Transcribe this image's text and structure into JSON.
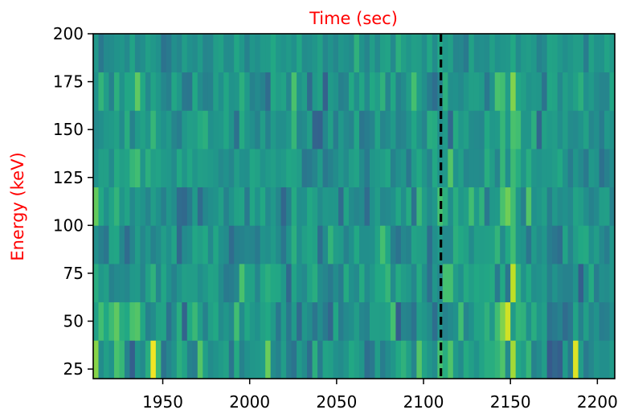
{
  "chart_data": {
    "type": "heatmap",
    "title": "Time (sec)",
    "xlabel": "",
    "ylabel": "Energy (keV)",
    "label_color": "#ff0000",
    "colormap": "viridis",
    "xlim": [
      1910,
      2210
    ],
    "ylim": [
      20,
      200
    ],
    "x_ticks": [
      1950,
      2000,
      2050,
      2100,
      2150,
      2200
    ],
    "y_ticks": [
      25,
      50,
      75,
      100,
      125,
      150,
      175,
      200
    ],
    "x_bin_width": 3,
    "y_bins": [
      20,
      40,
      60,
      80,
      100,
      120,
      140,
      160,
      180,
      200
    ],
    "marker_line": {
      "x": 2110,
      "style": "dashed",
      "color": "#000000"
    },
    "grid": false,
    "legend": "none",
    "intensity_rows": [
      [
        0.82,
        0.48,
        0.56,
        0.51,
        0.71,
        0.66,
        0.44,
        0.3,
        0.52,
        0.47,
        0.62,
        0.98,
        0.67,
        0.38,
        0.45,
        0.51,
        0.63,
        0.58,
        0.44,
        0.42,
        0.73,
        0.56,
        0.48,
        0.51,
        0.54,
        0.57,
        0.39,
        0.61,
        0.44,
        0.5,
        0.52,
        0.53,
        0.55,
        0.77,
        0.48,
        0.44,
        0.55,
        0.42,
        0.38,
        0.54,
        0.48,
        0.36,
        0.63,
        0.42,
        0.58,
        0.56,
        0.5,
        0.48,
        0.52,
        0.6,
        0.56,
        0.52,
        0.36,
        0.4,
        0.55,
        0.42,
        0.48,
        0.52,
        0.6,
        0.64,
        0.56,
        0.45,
        0.73,
        0.58,
        0.52,
        0.48,
        0.7,
        0.62,
        0.72,
        0.54,
        0.48,
        0.61,
        0.56,
        0.51,
        0.58,
        0.62,
        0.62,
        0.65,
        0.72,
        0.47,
        0.86,
        0.6,
        0.55,
        0.66,
        0.44,
        0.48,
        0.55,
        0.28,
        0.33,
        0.3,
        0.54,
        0.41,
        0.95,
        0.55,
        0.41,
        0.46,
        0.52,
        0.49,
        0.49,
        0.54
      ],
      [
        0.56,
        0.69,
        0.6,
        0.68,
        0.75,
        0.62,
        0.6,
        0.71,
        0.73,
        0.59,
        0.44,
        0.48,
        0.57,
        0.58,
        0.38,
        0.48,
        0.62,
        0.32,
        0.6,
        0.67,
        0.55,
        0.44,
        0.56,
        0.6,
        0.48,
        0.52,
        0.47,
        0.69,
        0.48,
        0.59,
        0.53,
        0.5,
        0.57,
        0.6,
        0.54,
        0.4,
        0.54,
        0.4,
        0.54,
        0.35,
        0.52,
        0.48,
        0.39,
        0.48,
        0.41,
        0.33,
        0.59,
        0.42,
        0.47,
        0.49,
        0.55,
        0.46,
        0.44,
        0.56,
        0.56,
        0.55,
        0.58,
        0.7,
        0.29,
        0.45,
        0.44,
        0.38,
        0.55,
        0.52,
        0.48,
        0.36,
        0.51,
        0.44,
        0.47,
        0.5,
        0.69,
        0.45,
        0.5,
        0.58,
        0.58,
        0.64,
        0.53,
        0.69,
        0.81,
        0.93,
        0.54,
        0.65,
        0.64,
        0.5,
        0.62,
        0.52,
        0.56,
        0.38,
        0.41,
        0.44,
        0.35,
        0.4,
        0.58,
        0.44,
        0.56,
        0.46,
        0.51,
        0.42,
        0.43,
        0.49
      ],
      [
        0.62,
        0.53,
        0.56,
        0.44,
        0.47,
        0.48,
        0.46,
        0.53,
        0.54,
        0.45,
        0.57,
        0.64,
        0.46,
        0.59,
        0.5,
        0.44,
        0.51,
        0.56,
        0.55,
        0.55,
        0.49,
        0.53,
        0.58,
        0.57,
        0.48,
        0.41,
        0.42,
        0.46,
        0.71,
        0.57,
        0.57,
        0.46,
        0.59,
        0.63,
        0.6,
        0.59,
        0.53,
        0.34,
        0.58,
        0.5,
        0.47,
        0.58,
        0.62,
        0.48,
        0.45,
        0.41,
        0.48,
        0.42,
        0.61,
        0.5,
        0.47,
        0.61,
        0.48,
        0.53,
        0.6,
        0.6,
        0.66,
        0.48,
        0.61,
        0.55,
        0.53,
        0.46,
        0.61,
        0.49,
        0.37,
        0.52,
        0.46,
        0.7,
        0.7,
        0.55,
        0.5,
        0.61,
        0.56,
        0.6,
        0.58,
        0.59,
        0.61,
        0.41,
        0.6,
        0.39,
        0.9,
        0.64,
        0.51,
        0.6,
        0.49,
        0.51,
        0.54,
        0.44,
        0.51,
        0.46,
        0.44,
        0.44,
        0.51,
        0.3,
        0.49,
        0.61,
        0.42,
        0.49,
        0.48,
        0.52
      ],
      [
        0.49,
        0.43,
        0.39,
        0.58,
        0.59,
        0.46,
        0.35,
        0.45,
        0.55,
        0.46,
        0.52,
        0.44,
        0.48,
        0.55,
        0.5,
        0.58,
        0.34,
        0.47,
        0.49,
        0.59,
        0.56,
        0.6,
        0.47,
        0.59,
        0.5,
        0.48,
        0.35,
        0.43,
        0.44,
        0.46,
        0.45,
        0.41,
        0.51,
        0.49,
        0.54,
        0.48,
        0.39,
        0.51,
        0.63,
        0.49,
        0.56,
        0.59,
        0.57,
        0.36,
        0.48,
        0.65,
        0.55,
        0.54,
        0.44,
        0.5,
        0.6,
        0.49,
        0.49,
        0.5,
        0.58,
        0.7,
        0.59,
        0.43,
        0.38,
        0.46,
        0.44,
        0.58,
        0.56,
        0.55,
        0.36,
        0.49,
        0.53,
        0.47,
        0.47,
        0.63,
        0.6,
        0.57,
        0.48,
        0.56,
        0.55,
        0.56,
        0.57,
        0.65,
        0.48,
        0.6,
        0.69,
        0.52,
        0.51,
        0.39,
        0.54,
        0.48,
        0.52,
        0.42,
        0.39,
        0.36,
        0.58,
        0.45,
        0.55,
        0.6,
        0.61,
        0.5,
        0.55,
        0.47,
        0.42,
        0.52
      ],
      [
        0.76,
        0.6,
        0.5,
        0.58,
        0.65,
        0.52,
        0.58,
        0.47,
        0.54,
        0.51,
        0.45,
        0.55,
        0.5,
        0.43,
        0.52,
        0.48,
        0.35,
        0.34,
        0.41,
        0.54,
        0.35,
        0.46,
        0.49,
        0.51,
        0.56,
        0.44,
        0.51,
        0.57,
        0.58,
        0.41,
        0.59,
        0.51,
        0.6,
        0.47,
        0.53,
        0.46,
        0.33,
        0.44,
        0.61,
        0.49,
        0.5,
        0.6,
        0.56,
        0.48,
        0.53,
        0.52,
        0.52,
        0.35,
        0.58,
        0.48,
        0.45,
        0.47,
        0.35,
        0.5,
        0.55,
        0.46,
        0.47,
        0.5,
        0.59,
        0.49,
        0.61,
        0.38,
        0.67,
        0.55,
        0.48,
        0.53,
        0.7,
        0.63,
        0.49,
        0.62,
        0.53,
        0.56,
        0.69,
        0.54,
        0.64,
        0.4,
        0.53,
        0.54,
        0.71,
        0.78,
        0.69,
        0.52,
        0.43,
        0.73,
        0.5,
        0.52,
        0.56,
        0.43,
        0.53,
        0.48,
        0.5,
        0.47,
        0.58,
        0.55,
        0.49,
        0.44,
        0.47,
        0.55,
        0.56,
        0.44
      ],
      [
        0.5,
        0.56,
        0.56,
        0.48,
        0.61,
        0.56,
        0.58,
        0.66,
        0.69,
        0.52,
        0.63,
        0.56,
        0.58,
        0.54,
        0.53,
        0.48,
        0.6,
        0.52,
        0.59,
        0.52,
        0.56,
        0.55,
        0.54,
        0.52,
        0.47,
        0.5,
        0.46,
        0.55,
        0.5,
        0.49,
        0.59,
        0.57,
        0.51,
        0.54,
        0.56,
        0.52,
        0.54,
        0.59,
        0.58,
        0.55,
        0.39,
        0.41,
        0.45,
        0.54,
        0.4,
        0.44,
        0.48,
        0.53,
        0.48,
        0.55,
        0.58,
        0.48,
        0.41,
        0.52,
        0.54,
        0.55,
        0.59,
        0.44,
        0.49,
        0.52,
        0.4,
        0.54,
        0.6,
        0.52,
        0.45,
        0.6,
        0.51,
        0.53,
        0.73,
        0.51,
        0.56,
        0.46,
        0.48,
        0.48,
        0.47,
        0.62,
        0.55,
        0.45,
        0.66,
        0.49,
        0.68,
        0.62,
        0.52,
        0.62,
        0.52,
        0.51,
        0.53,
        0.53,
        0.55,
        0.6,
        0.51,
        0.42,
        0.52,
        0.47,
        0.41,
        0.53,
        0.51,
        0.37,
        0.43,
        0.48
      ],
      [
        0.47,
        0.49,
        0.53,
        0.54,
        0.57,
        0.48,
        0.62,
        0.44,
        0.54,
        0.57,
        0.52,
        0.66,
        0.54,
        0.5,
        0.54,
        0.45,
        0.42,
        0.53,
        0.56,
        0.55,
        0.61,
        0.63,
        0.5,
        0.52,
        0.53,
        0.59,
        0.51,
        0.37,
        0.61,
        0.52,
        0.49,
        0.44,
        0.55,
        0.44,
        0.54,
        0.49,
        0.49,
        0.53,
        0.66,
        0.46,
        0.48,
        0.55,
        0.32,
        0.31,
        0.46,
        0.56,
        0.42,
        0.53,
        0.47,
        0.45,
        0.59,
        0.39,
        0.42,
        0.45,
        0.58,
        0.45,
        0.48,
        0.54,
        0.44,
        0.45,
        0.51,
        0.59,
        0.51,
        0.45,
        0.62,
        0.61,
        0.49,
        0.54,
        0.34,
        0.61,
        0.53,
        0.56,
        0.48,
        0.47,
        0.46,
        0.6,
        0.53,
        0.54,
        0.66,
        0.54,
        0.71,
        0.69,
        0.52,
        0.52,
        0.63,
        0.33,
        0.57,
        0.54,
        0.55,
        0.49,
        0.55,
        0.48,
        0.47,
        0.51,
        0.57,
        0.46,
        0.49,
        0.42,
        0.53,
        0.51
      ],
      [
        0.5,
        0.65,
        0.55,
        0.44,
        0.63,
        0.51,
        0.59,
        0.59,
        0.75,
        0.6,
        0.47,
        0.58,
        0.53,
        0.46,
        0.43,
        0.59,
        0.53,
        0.4,
        0.39,
        0.6,
        0.48,
        0.43,
        0.44,
        0.56,
        0.5,
        0.59,
        0.51,
        0.52,
        0.63,
        0.54,
        0.44,
        0.47,
        0.44,
        0.35,
        0.6,
        0.55,
        0.58,
        0.46,
        0.71,
        0.51,
        0.55,
        0.35,
        0.53,
        0.57,
        0.31,
        0.54,
        0.51,
        0.43,
        0.45,
        0.6,
        0.49,
        0.59,
        0.47,
        0.6,
        0.55,
        0.64,
        0.45,
        0.6,
        0.44,
        0.48,
        0.55,
        0.7,
        0.55,
        0.49,
        0.42,
        0.36,
        0.44,
        0.63,
        0.49,
        0.5,
        0.47,
        0.52,
        0.56,
        0.56,
        0.54,
        0.4,
        0.51,
        0.71,
        0.69,
        0.55,
        0.81,
        0.59,
        0.56,
        0.51,
        0.53,
        0.52,
        0.38,
        0.59,
        0.58,
        0.47,
        0.56,
        0.52,
        0.57,
        0.63,
        0.5,
        0.54,
        0.48,
        0.45,
        0.45,
        0.59
      ],
      [
        0.53,
        0.4,
        0.47,
        0.48,
        0.51,
        0.52,
        0.47,
        0.58,
        0.46,
        0.49,
        0.56,
        0.53,
        0.5,
        0.38,
        0.41,
        0.49,
        0.46,
        0.55,
        0.5,
        0.48,
        0.54,
        0.45,
        0.46,
        0.55,
        0.57,
        0.48,
        0.48,
        0.59,
        0.53,
        0.44,
        0.52,
        0.49,
        0.54,
        0.54,
        0.6,
        0.53,
        0.51,
        0.54,
        0.5,
        0.59,
        0.48,
        0.49,
        0.52,
        0.57,
        0.46,
        0.51,
        0.46,
        0.52,
        0.5,
        0.48,
        0.64,
        0.51,
        0.45,
        0.55,
        0.47,
        0.56,
        0.58,
        0.47,
        0.63,
        0.56,
        0.52,
        0.56,
        0.55,
        0.49,
        0.59,
        0.48,
        0.59,
        0.53,
        0.56,
        0.45,
        0.46,
        0.41,
        0.57,
        0.48,
        0.49,
        0.48,
        0.56,
        0.5,
        0.52,
        0.53,
        0.6,
        0.48,
        0.54,
        0.55,
        0.53,
        0.44,
        0.47,
        0.58,
        0.57,
        0.53,
        0.49,
        0.52,
        0.55,
        0.55,
        0.42,
        0.57,
        0.51,
        0.51,
        0.58,
        0.54
      ]
    ]
  }
}
